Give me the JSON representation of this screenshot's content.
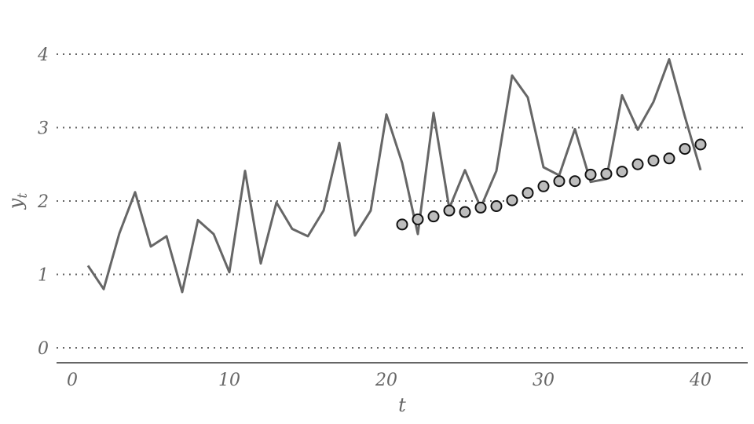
{
  "chart_data": {
    "type": "line",
    "xlabel": "t",
    "ylabel_main": "y",
    "ylabel_sub": "t",
    "xlim": [
      -1,
      43
    ],
    "ylim": [
      -0.2,
      4.2
    ],
    "xticks": [
      0,
      10,
      20,
      30,
      40
    ],
    "yticks": [
      0,
      1,
      2,
      3,
      4
    ],
    "grid": "horizontal dotted",
    "colors": {
      "line": "#666666",
      "marker_fill": "#bdbdbd",
      "marker_edge": "#111111",
      "text": "#666666"
    },
    "series": [
      {
        "type": "line",
        "x": [
          1,
          2,
          3,
          4,
          5,
          6,
          7,
          8,
          9,
          10,
          11,
          12,
          13,
          14,
          15,
          16,
          17,
          18,
          19,
          20,
          21,
          22,
          23,
          24,
          25,
          26,
          27,
          28,
          29,
          30,
          31,
          32,
          33,
          34,
          35,
          36,
          37,
          38,
          39,
          40
        ],
        "y": [
          1.12,
          0.8,
          1.56,
          2.12,
          1.38,
          1.52,
          0.76,
          1.74,
          1.55,
          1.03,
          2.41,
          1.15,
          1.98,
          1.62,
          1.52,
          1.87,
          2.79,
          1.53,
          1.87,
          3.18,
          2.52,
          1.55,
          3.2,
          1.9,
          2.42,
          1.91,
          2.41,
          3.71,
          3.41,
          2.46,
          2.35,
          2.98,
          2.26,
          2.3,
          3.44,
          2.97,
          3.35,
          3.93,
          3.15,
          2.42
        ]
      },
      {
        "type": "scatter",
        "x": [
          21,
          22,
          23,
          24,
          25,
          26,
          27,
          28,
          29,
          30,
          31,
          32,
          33,
          34,
          35,
          36,
          37,
          38,
          39,
          40
        ],
        "y": [
          1.68,
          1.75,
          1.79,
          1.87,
          1.85,
          1.91,
          1.93,
          2.01,
          2.11,
          2.2,
          2.27,
          2.27,
          2.36,
          2.37,
          2.4,
          2.5,
          2.55,
          2.58,
          2.71,
          2.77
        ]
      }
    ]
  }
}
